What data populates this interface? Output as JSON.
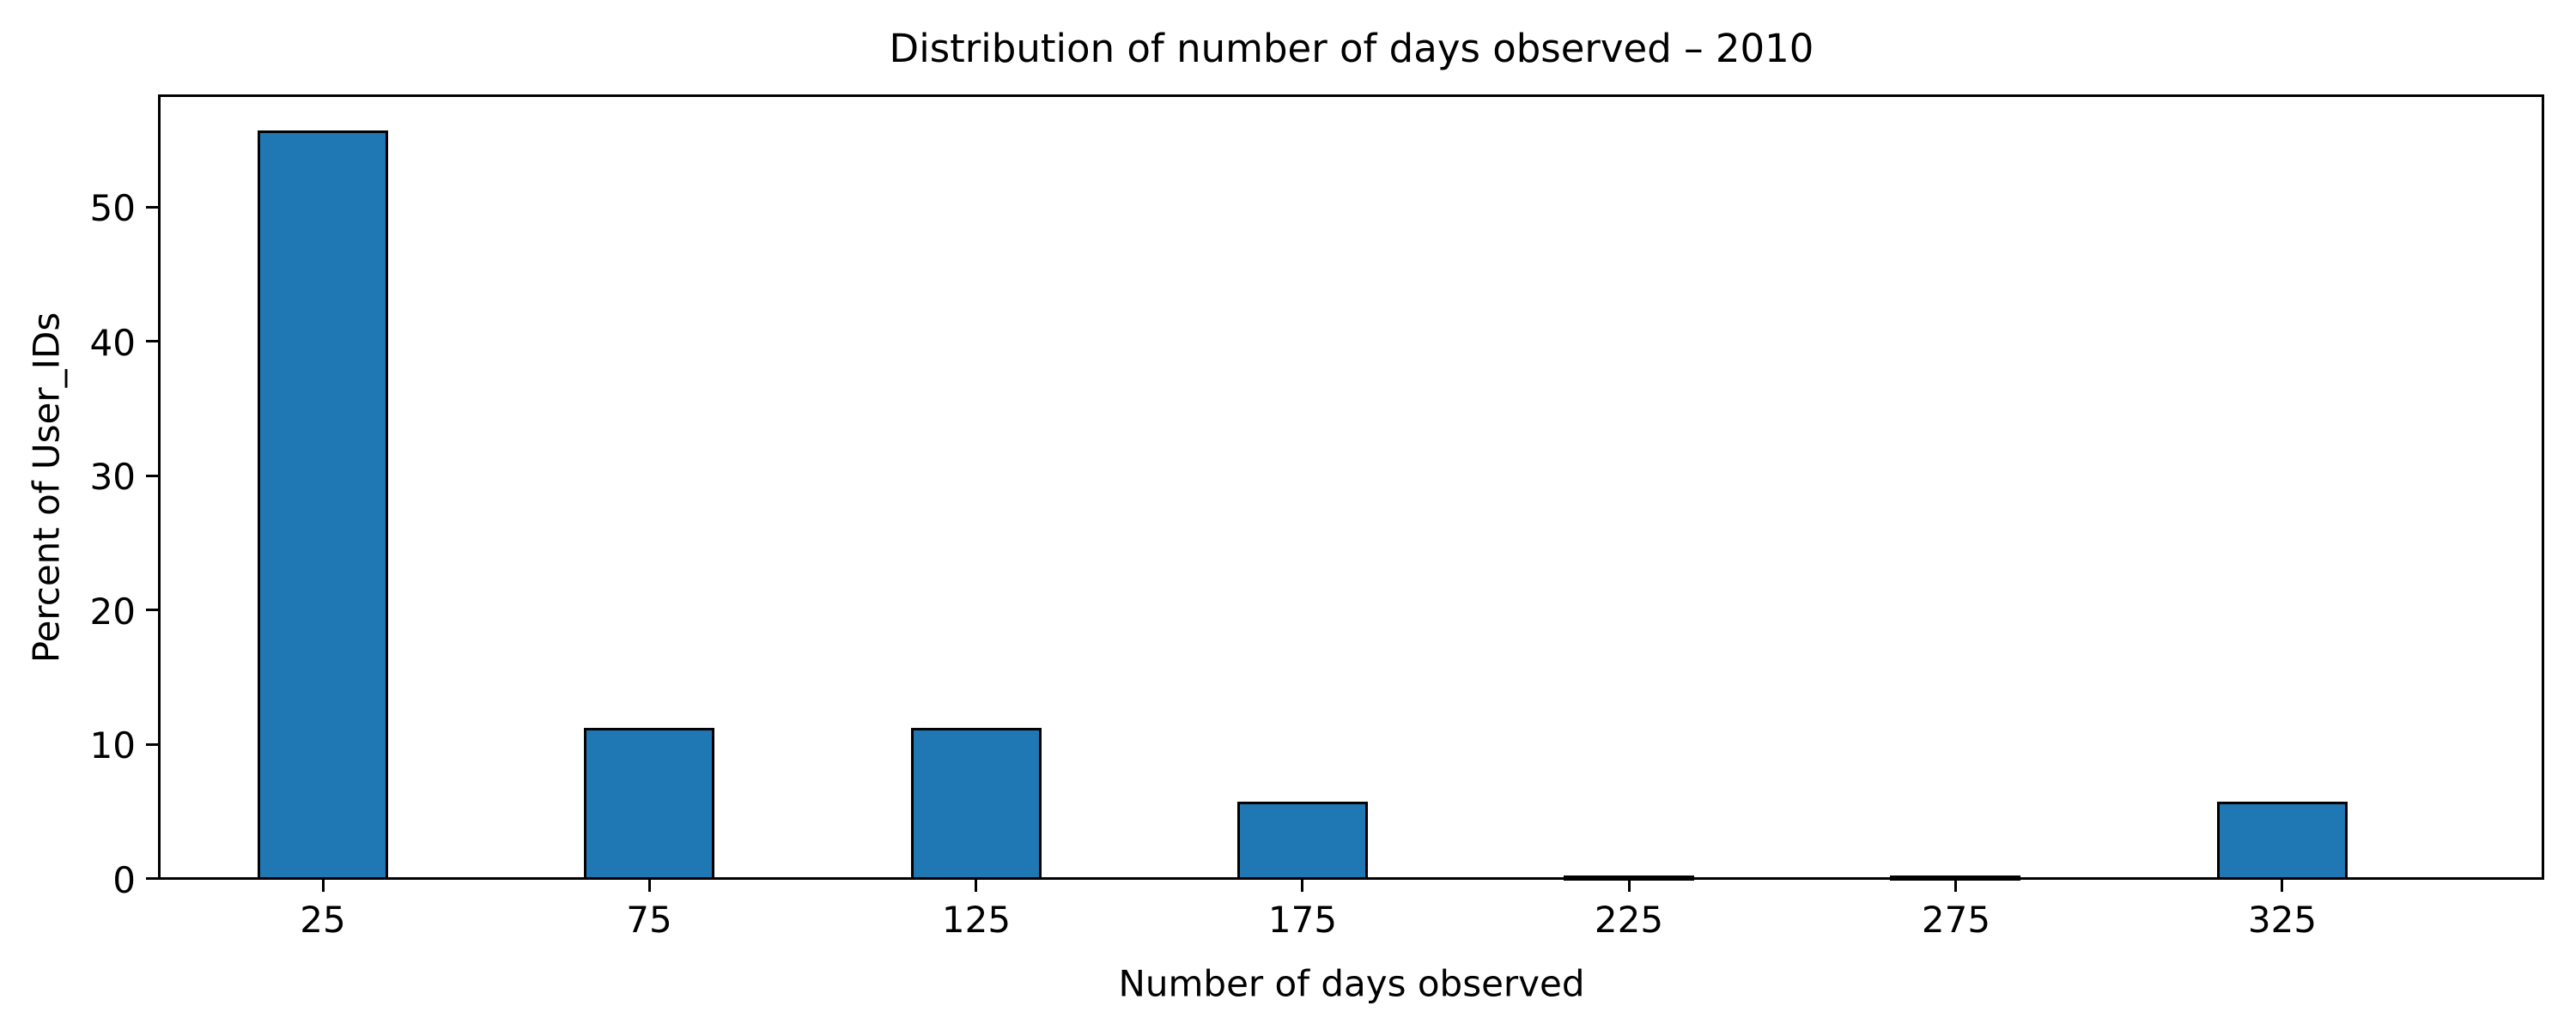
{
  "chart_data": {
    "type": "bar",
    "title": "Distribution of number of days observed – 2010",
    "xlabel": "Number of days observed",
    "ylabel": "Percent of User_IDs",
    "categories": [
      25,
      75,
      125,
      175,
      225,
      275,
      325
    ],
    "values": [
      55.6,
      11.1,
      11.1,
      5.6,
      0.15,
      0.15,
      5.6
    ],
    "bar_width_units": 20,
    "x_ticks": [
      "25",
      "75",
      "125",
      "175",
      "225",
      "275",
      "325"
    ],
    "x_tick_values": [
      25,
      75,
      125,
      175,
      225,
      275,
      325
    ],
    "y_ticks": [
      "0",
      "10",
      "20",
      "30",
      "40",
      "50"
    ],
    "y_tick_values": [
      0,
      10,
      20,
      30,
      40,
      50
    ],
    "xlim": [
      0,
      365
    ],
    "ylim": [
      0,
      58.3
    ],
    "grid": false,
    "legend": null,
    "colors": {
      "bar_fill": "#1f77b4",
      "bar_edge": "#000000",
      "spine": "#000000",
      "text": "#000000",
      "background": "#ffffff"
    }
  }
}
